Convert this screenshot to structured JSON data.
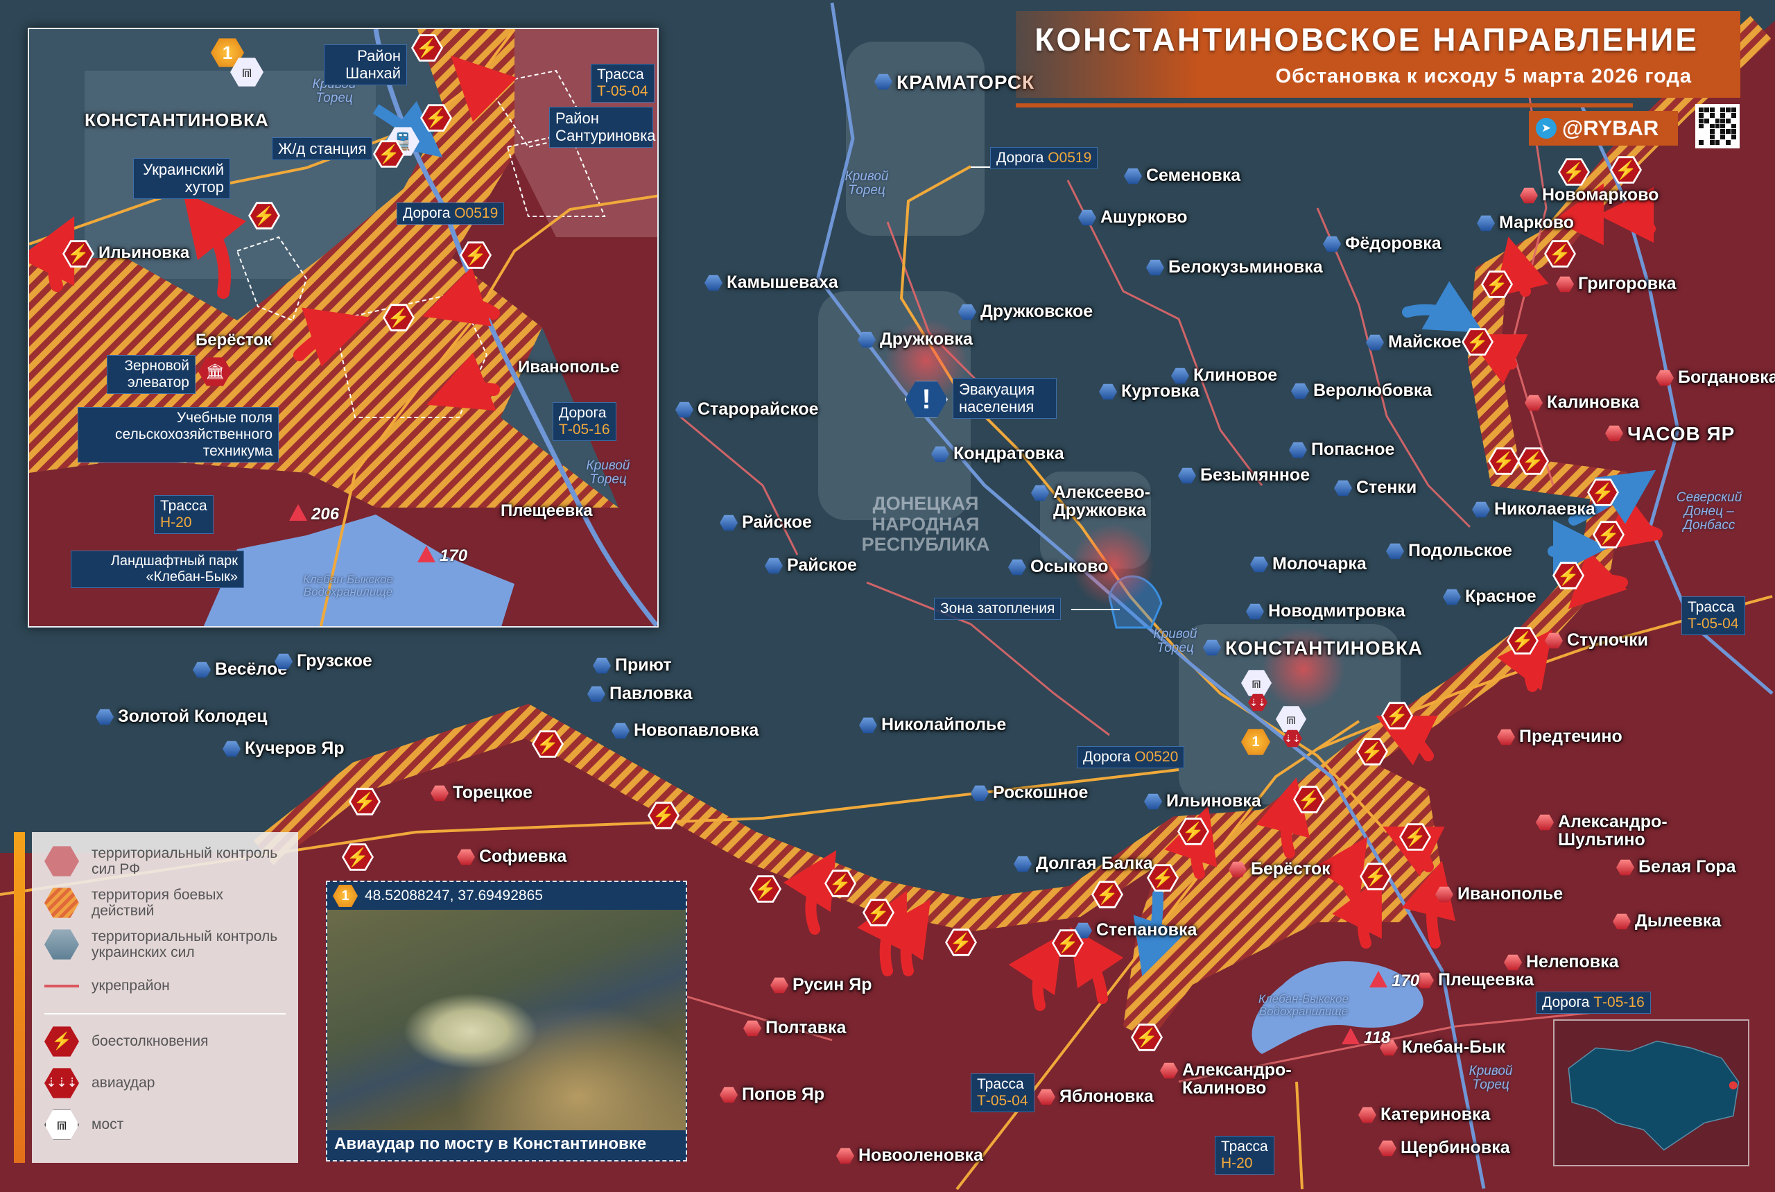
{
  "header": {
    "title": "КОНСТАНТИНОВСКОЕ НАПРАВЛЕНИЕ",
    "subtitle": "Обстановка к исходу 5 марта 2026 года",
    "brand": "@RYBAR",
    "brand_icon": "telegram-icon",
    "colors": {
      "accent": "#c4531c",
      "rf_territory": "#7a2530",
      "ua_territory": "#2e4655",
      "combat_stripes": "#e8a33a",
      "label_box": "#173a63"
    }
  },
  "towns": [
    {
      "name": "КРАМАТОРСК",
      "control": "ua"
    },
    {
      "name": "Семеновка",
      "control": "ua"
    },
    {
      "name": "Ашурково",
      "control": "ua"
    },
    {
      "name": "Фёдоровка",
      "control": "ua"
    },
    {
      "name": "Белокузьминовка",
      "control": "ua"
    },
    {
      "name": "Камышеваха",
      "control": "ua"
    },
    {
      "name": "Дружковское",
      "control": "ua"
    },
    {
      "name": "Дружковка",
      "control": "ua"
    },
    {
      "name": "Клиновое",
      "control": "ua"
    },
    {
      "name": "Куртовка",
      "control": "ua"
    },
    {
      "name": "Веролюбовка",
      "control": "ua"
    },
    {
      "name": "Старорайское",
      "control": "ua"
    },
    {
      "name": "Кондратовка",
      "control": "ua"
    },
    {
      "name": "Попасное",
      "control": "ua"
    },
    {
      "name": "Безымянное",
      "control": "ua"
    },
    {
      "name": "Алексеево-Дружковка",
      "control": "ua"
    },
    {
      "name": "Стенки",
      "control": "ua"
    },
    {
      "name": "Райское",
      "control": "ua"
    },
    {
      "name": "Райское",
      "control": "ua"
    },
    {
      "name": "Осыково",
      "control": "ua"
    },
    {
      "name": "Молочарка",
      "control": "ua"
    },
    {
      "name": "Новодмитровка",
      "control": "ua"
    },
    {
      "name": "КОНСТАНТИНОВКА",
      "control": "ua"
    },
    {
      "name": "Весёлое",
      "control": "ua"
    },
    {
      "name": "Грузское",
      "control": "ua"
    },
    {
      "name": "Приют",
      "control": "ua"
    },
    {
      "name": "Павловка",
      "control": "ua"
    },
    {
      "name": "Новопавловка",
      "control": "ua"
    },
    {
      "name": "Золотой Колодец",
      "control": "ua"
    },
    {
      "name": "Кучеров Яр",
      "control": "ua"
    },
    {
      "name": "Николайполье",
      "control": "ua"
    },
    {
      "name": "Торецкое",
      "control": "ru"
    },
    {
      "name": "Роскошное",
      "control": "ua"
    },
    {
      "name": "Ильиновка",
      "control": "ua"
    },
    {
      "name": "Софиевка",
      "control": "ru"
    },
    {
      "name": "Долгая Балка",
      "control": "ua"
    },
    {
      "name": "Берёсток",
      "control": "ru"
    },
    {
      "name": "Степановка",
      "control": "ua"
    },
    {
      "name": "Иванополье",
      "control": "ru"
    },
    {
      "name": "Русин Яр",
      "control": "ru"
    },
    {
      "name": "Нелеповка",
      "control": "ru"
    },
    {
      "name": "Плещеевка",
      "control": "ru"
    },
    {
      "name": "Полтавка",
      "control": "ru"
    },
    {
      "name": "Клебан-Бык",
      "control": "ru"
    },
    {
      "name": "Попов Яр",
      "control": "ru"
    },
    {
      "name": "Яблоновка",
      "control": "ru"
    },
    {
      "name": "Александро-Калиново",
      "control": "ru"
    },
    {
      "name": "Катериновка",
      "control": "ru"
    },
    {
      "name": "Новооленовка",
      "control": "ru"
    },
    {
      "name": "Щербиновка",
      "control": "ru"
    },
    {
      "name": "Новомарково",
      "control": "ru"
    },
    {
      "name": "Марково",
      "control": "ua"
    },
    {
      "name": "Григоровка",
      "control": "ru"
    },
    {
      "name": "Майское",
      "control": "ua"
    },
    {
      "name": "Богдановка",
      "control": "ru"
    },
    {
      "name": "Калиновка",
      "control": "ru"
    },
    {
      "name": "ЧАСОВ ЯР",
      "control": "ru"
    },
    {
      "name": "Николаевка",
      "control": "ua"
    },
    {
      "name": "Подольское",
      "control": "ua"
    },
    {
      "name": "Красное",
      "control": "ua"
    },
    {
      "name": "Ступочки",
      "control": "ru"
    },
    {
      "name": "Предтечино",
      "control": "ru"
    },
    {
      "name": "Александро-Шультино",
      "control": "ru"
    },
    {
      "name": "Белая Гора",
      "control": "ru"
    },
    {
      "name": "Дылеевка",
      "control": "ru"
    }
  ],
  "region_label": "ДОНЕЦКАЯ НАРОДНАЯ РЕСПУБЛИКА",
  "rivers": {
    "krivoy_torets": "Кривой Торец",
    "canal": "Северский Донец – Донбасс",
    "reservoir": "Клебан-Быкское Водохранилище"
  },
  "callouts": {
    "road_o0519": {
      "prefix": "Дорога",
      "code": "О0519"
    },
    "road_o0520": {
      "prefix": "Дорога",
      "code": "О0520"
    },
    "road_t0516": {
      "prefix": "Дорога",
      "code": "Т-05-16"
    },
    "highway_t0504": {
      "prefix": "Трасса",
      "code": "Т-05-04"
    },
    "highway_h20": {
      "prefix": "Трасса",
      "code": "Н-20"
    },
    "evacuation": "Эвакуация населения",
    "flood_zone": "Зона затопления"
  },
  "heights": {
    "h170": "170",
    "h118": "118",
    "h206": "206"
  },
  "inset": {
    "city": "КОНСТАНТИНОВКА",
    "marker": "1",
    "district_shanghai": "Район Шанхай",
    "district_santurinovka": "Район Сантуриновка",
    "rail_station": "Ж/д станция",
    "ukr_khutor": "Украинский хутор",
    "ilinovka": "Ильиновка",
    "berestok": "Берёсток",
    "elevator": "Зерновой элеватор",
    "ivanopolye": "Иванополье",
    "fields": "Учебные поля сельскохозяйственного техникума",
    "pleshcheevka": "Плещеевка",
    "park": "Ландшафтный парк «Клебан-Бык»"
  },
  "legend": {
    "items": [
      {
        "label": "территориальный контроль сил РФ",
        "icon": "rf-control-hex"
      },
      {
        "label": "территория боевых действий",
        "icon": "combat-zone-hex"
      },
      {
        "label": "территориальный контроль украинских сил",
        "icon": "ua-control-hex"
      },
      {
        "label": "укрепрайон",
        "icon": "fortification-line"
      },
      {
        "label": "боестолкновения",
        "icon": "clash-icon"
      },
      {
        "label": "авиаудар",
        "icon": "airstrike-icon"
      },
      {
        "label": "мост",
        "icon": "bridge-icon"
      }
    ]
  },
  "photo": {
    "marker": "1",
    "coords": "48.52088247, 37.69492865",
    "caption": "Авиаудар по мосту в Константиновке"
  }
}
